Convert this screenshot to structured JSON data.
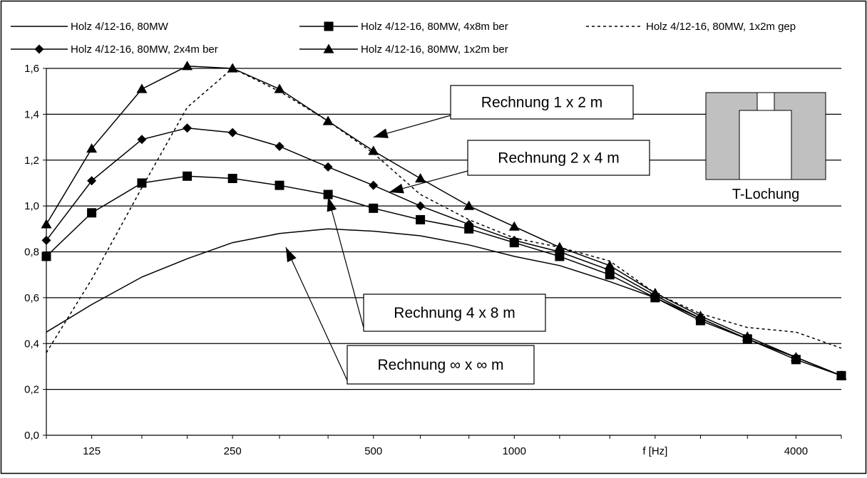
{
  "chart_data": {
    "type": "line",
    "x_scale": "log",
    "x": [
      100,
      125,
      160,
      200,
      250,
      315,
      400,
      500,
      630,
      800,
      1000,
      1250,
      1600,
      2000,
      2500,
      3150,
      4000,
      5000
    ],
    "x_tick_labels": [
      {
        "x": 125,
        "label": "125"
      },
      {
        "x": 250,
        "label": "250"
      },
      {
        "x": 500,
        "label": "500"
      },
      {
        "x": 1000,
        "label": "1000"
      },
      {
        "x": 2000,
        "label": "f [Hz]"
      },
      {
        "x": 4000,
        "label": "4000"
      }
    ],
    "ylim": [
      0,
      1.6
    ],
    "y_ticks": [
      "0,0",
      "0,2",
      "0,4",
      "0,6",
      "0,8",
      "1,0",
      "1,2",
      "1,4",
      "1,6"
    ],
    "grid": "horizontal",
    "legend_position": "top",
    "series": [
      {
        "name": "Holz 4/12-16, 80MW",
        "style": "solid",
        "marker": "none",
        "values": [
          0.45,
          0.57,
          0.69,
          0.77,
          0.84,
          0.88,
          0.9,
          0.89,
          0.87,
          0.83,
          0.78,
          0.74,
          0.67,
          0.6,
          0.51,
          0.42,
          0.34,
          0.26
        ]
      },
      {
        "name": "Holz 4/12-16, 80MW, 4x8m ber",
        "style": "solid",
        "marker": "square",
        "values": [
          0.78,
          0.97,
          1.1,
          1.13,
          1.12,
          1.09,
          1.05,
          0.99,
          0.94,
          0.9,
          0.84,
          0.78,
          0.7,
          0.6,
          0.5,
          0.42,
          0.33,
          0.26
        ]
      },
      {
        "name": "Holz 4/12-16, 80MW, 1x2m gep",
        "style": "dashed",
        "marker": "none",
        "values": [
          0.36,
          0.68,
          1.08,
          1.43,
          1.6,
          1.5,
          1.37,
          1.23,
          1.05,
          0.94,
          0.86,
          0.82,
          0.76,
          0.62,
          0.53,
          0.47,
          0.45,
          0.38
        ]
      },
      {
        "name": "Holz 4/12-16, 80MW, 2x4m ber",
        "style": "solid",
        "marker": "diamond",
        "values": [
          0.85,
          1.11,
          1.29,
          1.34,
          1.32,
          1.26,
          1.17,
          1.09,
          1.0,
          0.92,
          0.85,
          0.8,
          0.72,
          0.61,
          0.51,
          0.42,
          0.34,
          0.26
        ]
      },
      {
        "name": "Holz 4/12-16, 80MW, 1x2m ber",
        "style": "solid",
        "marker": "triangle",
        "values": [
          0.92,
          1.25,
          1.51,
          1.61,
          1.6,
          1.51,
          1.37,
          1.24,
          1.12,
          1.0,
          0.91,
          0.82,
          0.74,
          0.62,
          0.52,
          0.43,
          0.34,
          0.26
        ]
      }
    ],
    "annotations": [
      {
        "text": "Rechnung 1 x 2 m",
        "target_x": 500,
        "target_y": 1.3
      },
      {
        "text": "Rechnung 2 x 4 m",
        "target_x": 540,
        "target_y": 1.06
      },
      {
        "text": "Rechnung 4 x 8 m",
        "target_x": 400,
        "target_y": 1.04
      },
      {
        "text": "Rechnung ∞ x ∞ m",
        "target_x": 325,
        "target_y": 0.82
      }
    ],
    "inset_label": "T-Lochung"
  }
}
